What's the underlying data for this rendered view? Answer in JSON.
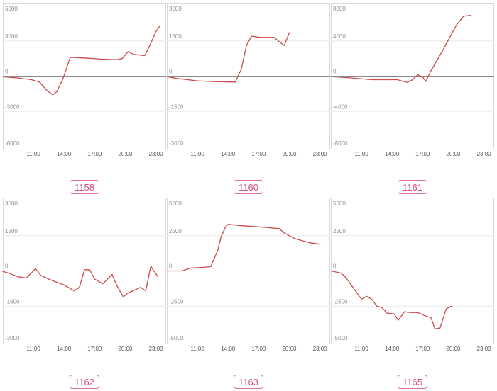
{
  "accent_color": "#d94f78",
  "line_color": "#cc4a4a",
  "chart_data": [
    {
      "type": "line",
      "label": "1158",
      "ylim": [
        -6000,
        6000
      ],
      "yticks": [
        6000,
        3000,
        0,
        -3000,
        -6000
      ],
      "xlim": [
        8,
        24
      ],
      "xticks": [
        11,
        14,
        17,
        20,
        23
      ],
      "xtick_labels": [
        "11:00",
        "14:00",
        "17:00",
        "20:00",
        "23:00"
      ],
      "x": [
        8.0,
        9.4,
        10.8,
        11.6,
        12.3,
        12.9,
        13.3,
        13.9,
        14.6,
        16.0,
        17.7,
        19.2,
        19.7,
        20.3,
        20.8,
        21.9,
        22.4,
        23.0,
        23.4
      ],
      "y": [
        -50,
        -150,
        -300,
        -500,
        -1200,
        -1600,
        -1300,
        -200,
        1600,
        1550,
        1450,
        1400,
        1500,
        2100,
        1850,
        1750,
        2600,
        3800,
        4300
      ]
    },
    {
      "type": "line",
      "label": "1160",
      "ylim": [
        -3000,
        3000
      ],
      "yticks": [
        3000,
        1500,
        0,
        -1500,
        -3000
      ],
      "xlim": [
        8,
        24
      ],
      "xticks": [
        11,
        14,
        17,
        20,
        23
      ],
      "xtick_labels": [
        "11:00",
        "14:00",
        "17:00",
        "20:00",
        "23:00"
      ],
      "x": [
        8.0,
        9.0,
        11.0,
        12.5,
        14.7,
        15.3,
        15.8,
        16.3,
        17.2,
        18.5,
        19.5,
        20.0
      ],
      "y": [
        -20,
        -100,
        -200,
        -230,
        -250,
        300,
        1300,
        1700,
        1650,
        1650,
        1300,
        1850
      ]
    },
    {
      "type": "line",
      "label": "1161",
      "ylim": [
        -8000,
        8000
      ],
      "yticks": [
        8000,
        4000,
        0,
        -4000,
        -8000
      ],
      "xlim": [
        8,
        24
      ],
      "xticks": [
        11,
        14,
        17,
        20,
        23
      ],
      "xtick_labels": [
        "11:00",
        "14:00",
        "17:00",
        "20:00",
        "23:00"
      ],
      "x": [
        8.0,
        10.0,
        12.0,
        14.5,
        15.5,
        16.0,
        16.5,
        17.0,
        17.3,
        17.8,
        19.0,
        20.3,
        21.0,
        21.7
      ],
      "y": [
        -50,
        -200,
        -400,
        -400,
        -700,
        -400,
        150,
        -100,
        -600,
        600,
        3000,
        5800,
        6800,
        6900
      ]
    },
    {
      "type": "line",
      "label": "1162",
      "ylim": [
        -3000,
        3000
      ],
      "yticks": [
        3000,
        1500,
        0,
        -1500,
        -3000
      ],
      "xlim": [
        8,
        24
      ],
      "xticks": [
        11,
        14,
        17,
        20,
        23
      ],
      "xtick_labels": [
        "11:00",
        "14:00",
        "17:00",
        "20:00",
        "23:00"
      ],
      "x": [
        8.0,
        8.5,
        9.5,
        10.3,
        11.2,
        11.7,
        12.5,
        14.0,
        15.0,
        15.5,
        16.0,
        16.5,
        17.0,
        17.8,
        18.7,
        19.2,
        19.8,
        20.2,
        21.5,
        22.0,
        22.5,
        23.2
      ],
      "y": [
        -20,
        -80,
        -250,
        -300,
        100,
        -180,
        -350,
        -600,
        -850,
        -700,
        50,
        50,
        -350,
        -550,
        -150,
        -650,
        -1100,
        -950,
        -700,
        -850,
        200,
        -250
      ]
    },
    {
      "type": "line",
      "label": "1163",
      "ylim": [
        -5000,
        5000
      ],
      "yticks": [
        5000,
        2500,
        0,
        -2500,
        -5000
      ],
      "xlim": [
        8,
        24
      ],
      "xticks": [
        11,
        14,
        17,
        20,
        23
      ],
      "xtick_labels": [
        "11:00",
        "14:00",
        "17:00",
        "20:00",
        "23:00"
      ],
      "x": [
        8.0,
        9.5,
        10.3,
        11.5,
        12.3,
        13.0,
        13.3,
        13.8,
        14.0,
        15.5,
        17.5,
        19.0,
        19.5,
        20.5,
        22.0,
        23.0
      ],
      "y": [
        0,
        0,
        200,
        250,
        300,
        1500,
        2400,
        3200,
        3300,
        3200,
        3100,
        3000,
        2700,
        2300,
        2000,
        1900
      ]
    },
    {
      "type": "line",
      "label": "1165",
      "ylim": [
        -5000,
        5000
      ],
      "yticks": [
        5000,
        2500,
        0,
        -2500,
        -5000
      ],
      "xlim": [
        8,
        24
      ],
      "xticks": [
        11,
        14,
        17,
        20,
        23
      ],
      "xtick_labels": [
        "11:00",
        "14:00",
        "17:00",
        "20:00",
        "23:00"
      ],
      "x": [
        8.0,
        9.0,
        9.5,
        10.5,
        11.0,
        11.5,
        12.0,
        12.5,
        13.0,
        13.5,
        14.2,
        14.6,
        15.2,
        15.8,
        16.5,
        17.3,
        17.8,
        18.2,
        18.7,
        19.3,
        19.8
      ],
      "y": [
        0,
        -150,
        -500,
        -1500,
        -2000,
        -1800,
        -2000,
        -2500,
        -2600,
        -3000,
        -3050,
        -3500,
        -2900,
        -2950,
        -2950,
        -3200,
        -3300,
        -4100,
        -4050,
        -2700,
        -2500
      ]
    }
  ]
}
